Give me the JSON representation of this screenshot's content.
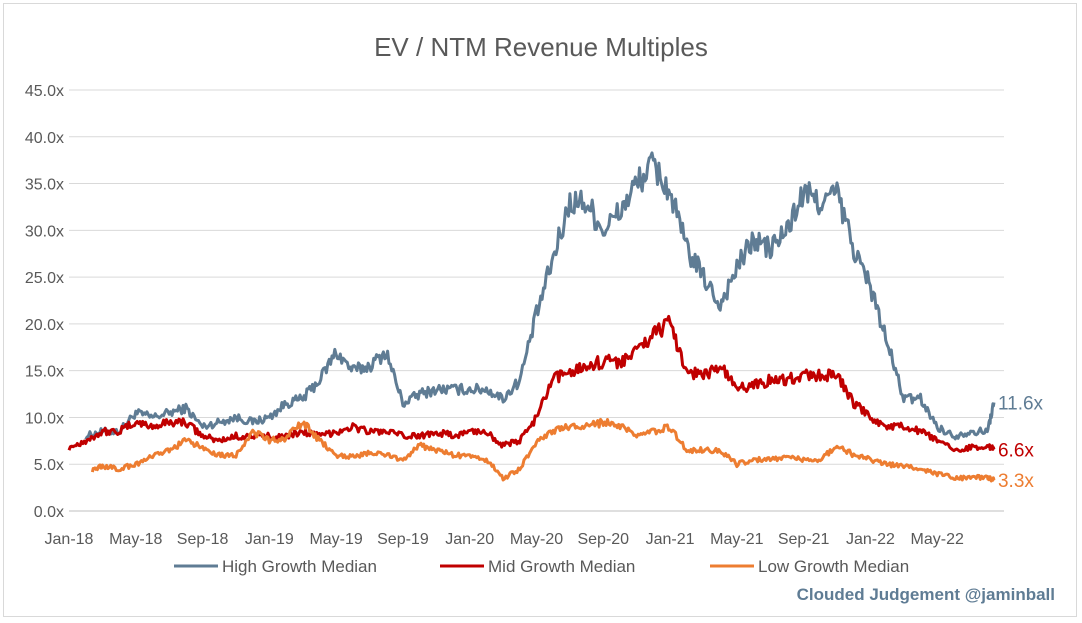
{
  "chart_data": {
    "type": "line",
    "title": "EV / NTM Revenue Multiples",
    "xlabel": "",
    "ylabel": "",
    "ylim": [
      0,
      45
    ],
    "y_ticks": [
      "0.0x",
      "5.0x",
      "10.0x",
      "15.0x",
      "20.0x",
      "25.0x",
      "30.0x",
      "35.0x",
      "40.0x",
      "45.0x"
    ],
    "x_ticks": [
      "Jan-18",
      "May-18",
      "Sep-18",
      "Jan-19",
      "May-19",
      "Sep-19",
      "Jan-20",
      "May-20",
      "Sep-20",
      "Jan-21",
      "May-21",
      "Sep-21",
      "Jan-22",
      "May-22"
    ],
    "x_range_months": [
      0,
      56
    ],
    "grid": true,
    "legend_position": "bottom",
    "watermark": "Clouded Judgement @jaminball",
    "series": [
      {
        "name": "High Growth Median",
        "color": "#5f7c94",
        "end_label": "11.6x",
        "points": [
          [
            1.0,
            8.0
          ],
          [
            2.0,
            8.5
          ],
          [
            3.0,
            8.5
          ],
          [
            4.0,
            10.5
          ],
          [
            5.0,
            10.0
          ],
          [
            6.0,
            10.5
          ],
          [
            7.0,
            11.0
          ],
          [
            8.0,
            9.0
          ],
          [
            9.0,
            9.5
          ],
          [
            10.0,
            10.0
          ],
          [
            11.0,
            9.5
          ],
          [
            12.0,
            10.0
          ],
          [
            13.0,
            11.5
          ],
          [
            14.0,
            12.0
          ],
          [
            15.0,
            14.0
          ],
          [
            16.0,
            17.0
          ],
          [
            17.0,
            15.0
          ],
          [
            18.0,
            15.5
          ],
          [
            19.0,
            17.0
          ],
          [
            20.0,
            11.5
          ],
          [
            21.0,
            12.5
          ],
          [
            22.0,
            13.0
          ],
          [
            23.0,
            13.0
          ],
          [
            24.0,
            13.0
          ],
          [
            25.0,
            13.0
          ],
          [
            26.0,
            12.0
          ],
          [
            27.0,
            14.0
          ],
          [
            28.0,
            21.0
          ],
          [
            29.0,
            27.0
          ],
          [
            30.0,
            33.0
          ],
          [
            31.0,
            33.0
          ],
          [
            32.0,
            30.0
          ],
          [
            33.0,
            32.0
          ],
          [
            34.0,
            35.0
          ],
          [
            35.0,
            37.0
          ],
          [
            36.0,
            34.0
          ],
          [
            37.0,
            28.0
          ],
          [
            38.0,
            25.0
          ],
          [
            39.0,
            22.0
          ],
          [
            40.0,
            26.0
          ],
          [
            41.0,
            29.0
          ],
          [
            42.0,
            28.0
          ],
          [
            43.0,
            30.0
          ],
          [
            44.0,
            34.0
          ],
          [
            45.0,
            33.0
          ],
          [
            46.0,
            34.0
          ],
          [
            47.0,
            28.0
          ],
          [
            48.0,
            24.0
          ],
          [
            49.0,
            18.0
          ],
          [
            50.0,
            12.0
          ],
          [
            51.0,
            12.0
          ],
          [
            52.0,
            9.0
          ],
          [
            53.0,
            8.0
          ],
          [
            54.0,
            8.5
          ],
          [
            55.0,
            8.5
          ],
          [
            55.4,
            11.6
          ]
        ]
      },
      {
        "name": "Mid Growth Median",
        "color": "#c00000",
        "end_label": "6.6x",
        "points": [
          [
            0.0,
            6.8
          ],
          [
            1.0,
            7.5
          ],
          [
            2.0,
            8.5
          ],
          [
            3.0,
            8.5
          ],
          [
            4.0,
            9.5
          ],
          [
            5.0,
            9.0
          ],
          [
            6.0,
            9.5
          ],
          [
            7.0,
            9.5
          ],
          [
            8.0,
            8.0
          ],
          [
            9.0,
            7.5
          ],
          [
            10.0,
            8.0
          ],
          [
            11.0,
            8.0
          ],
          [
            12.0,
            8.0
          ],
          [
            13.0,
            8.0
          ],
          [
            14.0,
            8.5
          ],
          [
            15.0,
            8.0
          ],
          [
            16.0,
            8.5
          ],
          [
            17.0,
            9.0
          ],
          [
            18.0,
            8.5
          ],
          [
            19.0,
            8.5
          ],
          [
            20.0,
            8.0
          ],
          [
            21.0,
            8.0
          ],
          [
            22.0,
            8.5
          ],
          [
            23.0,
            8.0
          ],
          [
            24.0,
            8.5
          ],
          [
            25.0,
            8.5
          ],
          [
            26.0,
            7.0
          ],
          [
            27.0,
            7.5
          ],
          [
            28.0,
            10.0
          ],
          [
            29.0,
            14.0
          ],
          [
            30.0,
            15.0
          ],
          [
            31.0,
            15.5
          ],
          [
            32.0,
            16.0
          ],
          [
            33.0,
            16.0
          ],
          [
            34.0,
            17.0
          ],
          [
            35.0,
            19.0
          ],
          [
            36.0,
            20.0
          ],
          [
            37.0,
            15.0
          ],
          [
            38.0,
            14.5
          ],
          [
            39.0,
            15.5
          ],
          [
            40.0,
            13.0
          ],
          [
            41.0,
            13.5
          ],
          [
            42.0,
            14.0
          ],
          [
            43.0,
            14.0
          ],
          [
            44.0,
            14.5
          ],
          [
            45.0,
            14.5
          ],
          [
            46.0,
            14.5
          ],
          [
            47.0,
            11.5
          ],
          [
            48.0,
            10.0
          ],
          [
            49.0,
            9.0
          ],
          [
            50.0,
            9.0
          ],
          [
            51.0,
            8.5
          ],
          [
            52.0,
            7.5
          ],
          [
            53.0,
            6.5
          ],
          [
            54.0,
            6.8
          ],
          [
            55.0,
            7.0
          ],
          [
            55.4,
            6.6
          ]
        ]
      },
      {
        "name": "Low Growth Median",
        "color": "#ed7d31",
        "end_label": "3.3x",
        "points": [
          [
            1.4,
            4.4
          ],
          [
            2.0,
            4.8
          ],
          [
            3.0,
            4.5
          ],
          [
            4.0,
            5.0
          ],
          [
            5.0,
            5.8
          ],
          [
            6.0,
            6.5
          ],
          [
            7.0,
            7.5
          ],
          [
            8.0,
            6.8
          ],
          [
            9.0,
            6.0
          ],
          [
            10.0,
            6.0
          ],
          [
            11.0,
            8.5
          ],
          [
            12.0,
            7.5
          ],
          [
            13.0,
            7.8
          ],
          [
            14.0,
            9.5
          ],
          [
            15.0,
            7.5
          ],
          [
            16.0,
            6.0
          ],
          [
            17.0,
            5.8
          ],
          [
            18.0,
            6.2
          ],
          [
            19.0,
            6.0
          ],
          [
            20.0,
            5.5
          ],
          [
            21.0,
            7.0
          ],
          [
            22.0,
            6.5
          ],
          [
            23.0,
            6.0
          ],
          [
            24.0,
            5.8
          ],
          [
            25.0,
            5.5
          ],
          [
            26.0,
            3.5
          ],
          [
            27.0,
            4.5
          ],
          [
            28.0,
            7.5
          ],
          [
            29.0,
            8.5
          ],
          [
            30.0,
            9.0
          ],
          [
            31.0,
            9.0
          ],
          [
            32.0,
            9.5
          ],
          [
            33.0,
            9.0
          ],
          [
            34.0,
            8.0
          ],
          [
            35.0,
            8.5
          ],
          [
            36.0,
            9.0
          ],
          [
            37.0,
            6.5
          ],
          [
            38.0,
            6.5
          ],
          [
            39.0,
            6.5
          ],
          [
            40.0,
            5.0
          ],
          [
            41.0,
            5.5
          ],
          [
            42.0,
            5.5
          ],
          [
            43.0,
            5.8
          ],
          [
            44.0,
            5.5
          ],
          [
            45.0,
            5.5
          ],
          [
            46.0,
            7.0
          ],
          [
            47.0,
            6.0
          ],
          [
            48.0,
            5.5
          ],
          [
            49.0,
            5.0
          ],
          [
            50.0,
            4.8
          ],
          [
            51.0,
            4.5
          ],
          [
            52.0,
            4.0
          ],
          [
            53.0,
            3.5
          ],
          [
            54.0,
            3.6
          ],
          [
            55.0,
            3.5
          ],
          [
            55.4,
            3.3
          ]
        ]
      }
    ]
  }
}
